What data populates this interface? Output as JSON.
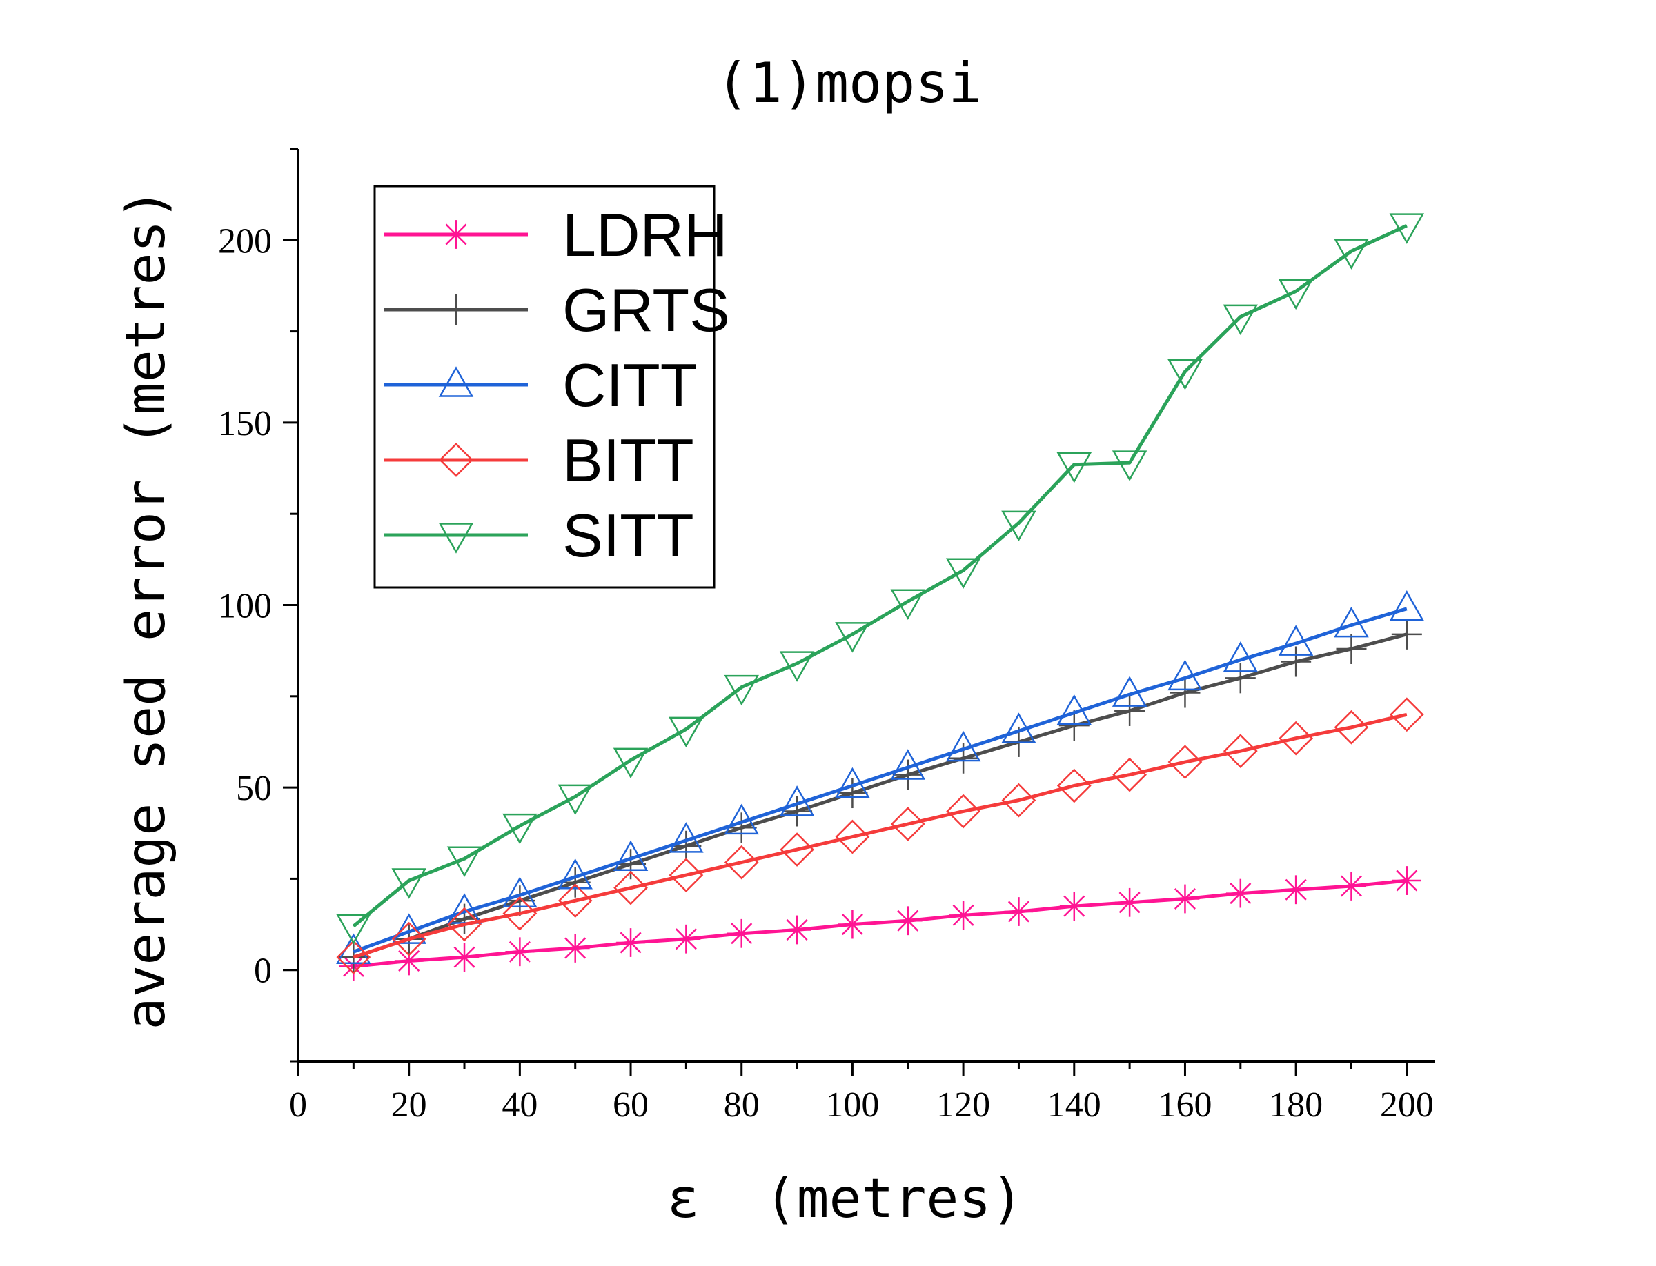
{
  "chart_data": {
    "type": "line",
    "title": "(1)mopsi",
    "xlabel": "ε  (metres)",
    "ylabel": "average sed error (metres)",
    "xlim": [
      0,
      205
    ],
    "ylim": [
      -25,
      225
    ],
    "x_ticks": [
      0,
      20,
      40,
      60,
      80,
      100,
      120,
      140,
      160,
      180,
      200
    ],
    "y_ticks": [
      0,
      50,
      100,
      150,
      200
    ],
    "grid": false,
    "legend_position": "top-left",
    "x": [
      10,
      20,
      30,
      40,
      50,
      60,
      70,
      80,
      90,
      100,
      110,
      120,
      130,
      140,
      150,
      160,
      170,
      180,
      190,
      200
    ],
    "series": [
      {
        "name": "LDRH",
        "color": "#ff1493",
        "marker": "asterisk",
        "values": [
          1,
          2.5,
          3.5,
          5,
          6,
          7.5,
          8.5,
          10,
          11,
          12.5,
          13.5,
          15,
          16,
          17.5,
          18.5,
          19.5,
          21,
          22,
          23,
          24.5
        ]
      },
      {
        "name": "GRTS",
        "color": "#4d4d4d",
        "marker": "plus",
        "values": [
          3.5,
          8.5,
          14,
          19,
          24,
          29,
          34,
          39,
          43.5,
          48.5,
          53.5,
          58,
          62.5,
          67,
          71,
          76,
          80,
          84.5,
          88,
          92
        ]
      },
      {
        "name": "CITT",
        "color": "#1f63d8",
        "marker": "triangle-up",
        "values": [
          5,
          10.5,
          16,
          20.5,
          25.5,
          30.5,
          35.5,
          40.5,
          45.5,
          50.5,
          55.5,
          60.5,
          65.5,
          70.5,
          75.5,
          80,
          85,
          89.5,
          94.5,
          99
        ]
      },
      {
        "name": "BITT",
        "color": "#f53b3b",
        "marker": "diamond",
        "values": [
          3.5,
          8.5,
          12.5,
          15.5,
          19,
          22.5,
          26,
          29.5,
          33,
          36.5,
          40,
          43.5,
          46.5,
          50.5,
          53.5,
          57,
          60,
          63.5,
          66.5,
          70
        ]
      },
      {
        "name": "SITT",
        "color": "#2ba35a",
        "marker": "triangle-down",
        "values": [
          12,
          24.5,
          30.5,
          39.5,
          47.5,
          57.5,
          66,
          77.5,
          84,
          92,
          101,
          109.5,
          122.5,
          138.5,
          139,
          164,
          179,
          186,
          197,
          204
        ]
      }
    ]
  }
}
